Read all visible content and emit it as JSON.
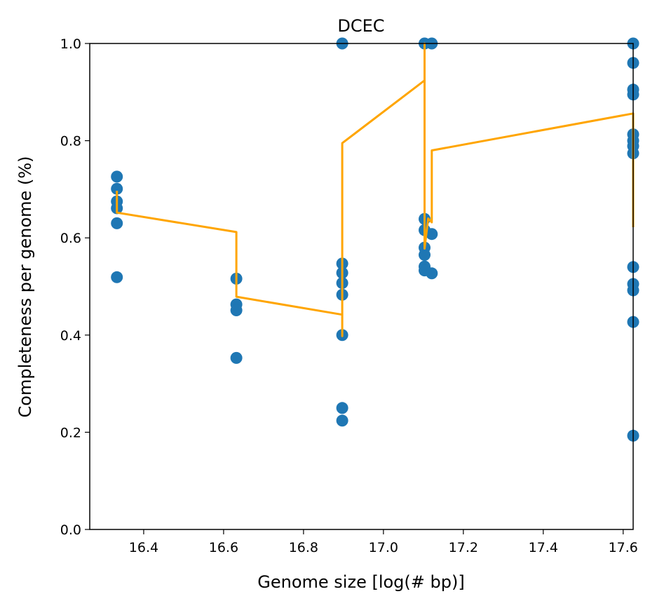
{
  "chart_data": {
    "type": "scatter",
    "title": "DCEC",
    "xlabel": "Genome size [log(# bp)]",
    "ylabel": "Completeness per genome (%)",
    "xlim": [
      16.265,
      17.625
    ],
    "ylim": [
      0.0,
      1.0
    ],
    "xticks": [
      "16.4",
      "16.6",
      "16.8",
      "17.0",
      "17.2",
      "17.4",
      "17.6"
    ],
    "yticks": [
      "0.0",
      "0.2",
      "0.4",
      "0.6",
      "0.8",
      "1.0"
    ],
    "grid": false,
    "colors": {
      "points": "#1f77b4",
      "line": "#ffa500"
    },
    "series": [
      {
        "kind": "scatter",
        "points": [
          [
            16.333,
            0.726
          ],
          [
            16.333,
            0.701
          ],
          [
            16.333,
            0.675
          ],
          [
            16.333,
            0.661
          ],
          [
            16.333,
            0.63
          ],
          [
            16.333,
            0.519
          ],
          [
            16.632,
            0.516
          ],
          [
            16.632,
            0.463
          ],
          [
            16.632,
            0.451
          ],
          [
            16.632,
            0.353
          ],
          [
            16.897,
            1.0
          ],
          [
            16.897,
            0.547
          ],
          [
            16.897,
            0.528
          ],
          [
            16.897,
            0.507
          ],
          [
            16.897,
            0.483
          ],
          [
            16.897,
            0.4
          ],
          [
            16.897,
            0.25
          ],
          [
            16.897,
            0.224
          ],
          [
            17.103,
            1.0
          ],
          [
            17.103,
            0.639
          ],
          [
            17.103,
            0.616
          ],
          [
            17.103,
            0.58
          ],
          [
            17.103,
            0.565
          ],
          [
            17.103,
            0.541
          ],
          [
            17.103,
            0.533
          ],
          [
            17.121,
            1.0
          ],
          [
            17.121,
            0.608
          ],
          [
            17.121,
            0.527
          ],
          [
            17.625,
            1.0
          ],
          [
            17.625,
            0.96
          ],
          [
            17.625,
            0.905
          ],
          [
            17.625,
            0.895
          ],
          [
            17.625,
            0.813
          ],
          [
            17.625,
            0.8
          ],
          [
            17.625,
            0.789
          ],
          [
            17.625,
            0.774
          ],
          [
            17.625,
            0.54
          ],
          [
            17.625,
            0.505
          ],
          [
            17.625,
            0.492
          ],
          [
            17.625,
            0.427
          ],
          [
            17.625,
            0.193
          ]
        ]
      },
      {
        "kind": "line",
        "points": [
          [
            16.333,
            0.697
          ],
          [
            16.333,
            0.652
          ],
          [
            16.632,
            0.612
          ],
          [
            16.632,
            0.479
          ],
          [
            16.897,
            0.442
          ],
          [
            16.897,
            0.398
          ],
          [
            16.897,
            0.795
          ],
          [
            17.103,
            0.924
          ],
          [
            17.103,
            1.0
          ],
          [
            17.103,
            0.578
          ],
          [
            17.112,
            0.64
          ],
          [
            17.121,
            0.632
          ],
          [
            17.121,
            0.78
          ],
          [
            17.625,
            0.856
          ],
          [
            17.625,
            0.622
          ]
        ]
      }
    ]
  }
}
